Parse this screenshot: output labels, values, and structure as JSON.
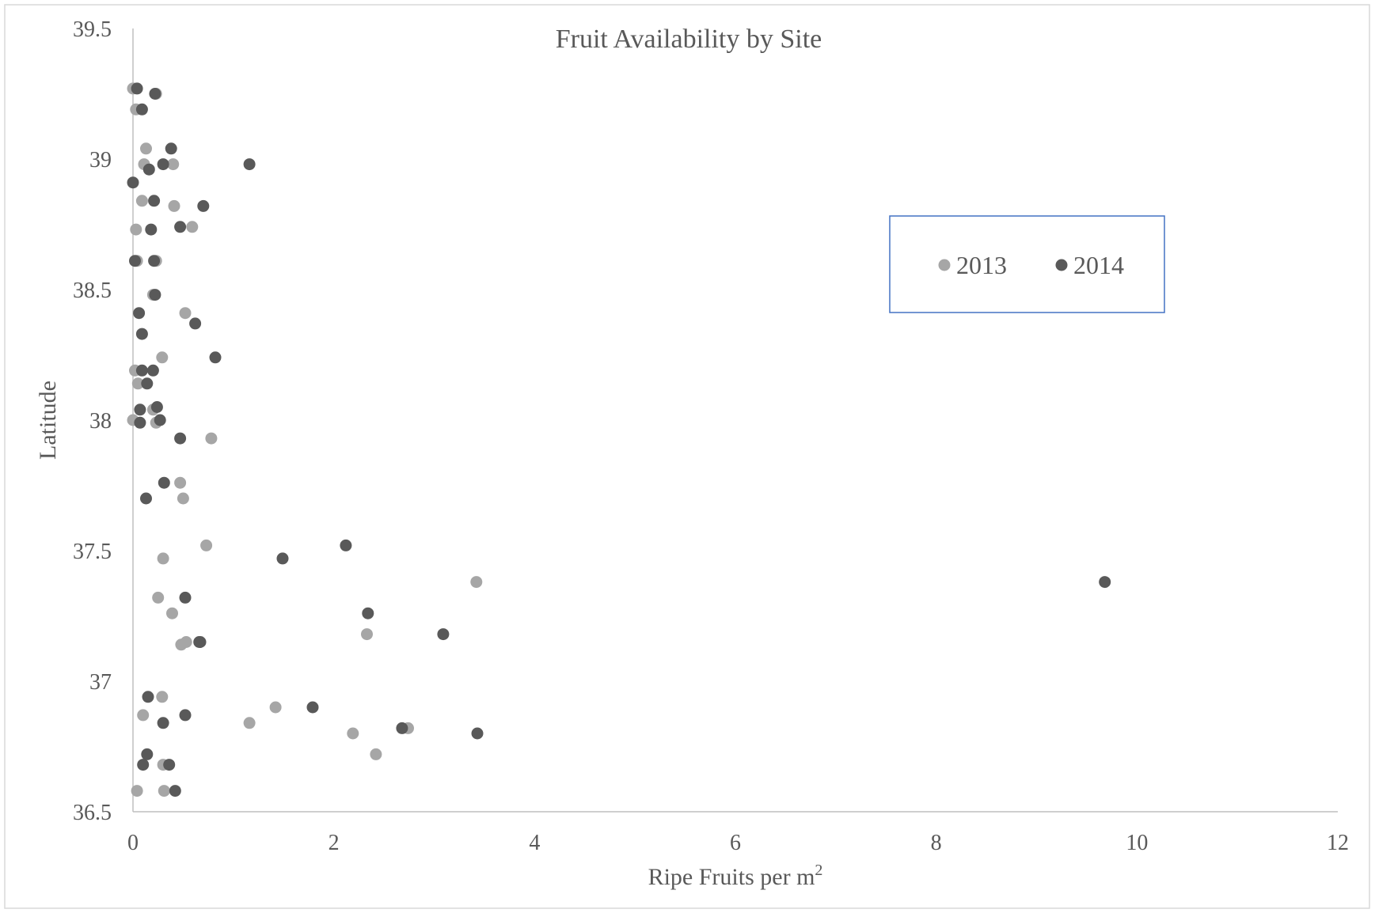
{
  "chart_data": {
    "type": "scatter",
    "title": "Fruit Availability by Site",
    "xlabel": "Ripe Fruits per m",
    "xlabel_sup": "2",
    "ylabel": "Latitude",
    "xlim": [
      0,
      12
    ],
    "ylim": [
      36.5,
      39.5
    ],
    "xticks": [
      0,
      2,
      4,
      6,
      8,
      10,
      12
    ],
    "yticks": [
      36.5,
      37,
      37.5,
      38,
      38.5,
      39,
      39.5
    ],
    "ytick_labels": [
      "36.5",
      "37",
      "37.5",
      "38",
      "38.5",
      "39",
      "39.5"
    ],
    "grid": false,
    "legend_position": "right",
    "colors": {
      "2013": "#a6a6a6",
      "2014": "#595959",
      "legend_border": "#4472c4"
    },
    "series": [
      {
        "name": "2013",
        "points": [
          [
            0.0,
            39.27
          ],
          [
            0.23,
            39.25
          ],
          [
            0.03,
            39.19
          ],
          [
            0.13,
            39.04
          ],
          [
            0.11,
            38.98
          ],
          [
            0.4,
            38.98
          ],
          [
            0.09,
            38.84
          ],
          [
            0.41,
            38.82
          ],
          [
            0.03,
            38.73
          ],
          [
            0.59,
            38.74
          ],
          [
            0.04,
            38.61
          ],
          [
            0.23,
            38.61
          ],
          [
            0.2,
            38.48
          ],
          [
            0.52,
            38.41
          ],
          [
            0.29,
            38.24
          ],
          [
            0.02,
            38.19
          ],
          [
            0.05,
            38.14
          ],
          [
            0.2,
            38.04
          ],
          [
            0.0,
            38.0
          ],
          [
            0.23,
            37.99
          ],
          [
            0.78,
            37.93
          ],
          [
            0.47,
            37.76
          ],
          [
            0.5,
            37.7
          ],
          [
            0.73,
            37.52
          ],
          [
            0.3,
            37.47
          ],
          [
            3.42,
            37.38
          ],
          [
            0.25,
            37.32
          ],
          [
            0.39,
            37.26
          ],
          [
            2.33,
            37.18
          ],
          [
            0.53,
            37.15
          ],
          [
            0.48,
            37.14
          ],
          [
            0.29,
            36.94
          ],
          [
            0.1,
            36.87
          ],
          [
            1.42,
            36.9
          ],
          [
            1.16,
            36.84
          ],
          [
            2.74,
            36.82
          ],
          [
            2.19,
            36.8
          ],
          [
            2.42,
            36.72
          ],
          [
            0.3,
            36.68
          ],
          [
            0.04,
            36.58
          ],
          [
            0.31,
            36.58
          ]
        ]
      },
      {
        "name": "2014",
        "points": [
          [
            0.04,
            39.27
          ],
          [
            0.22,
            39.25
          ],
          [
            0.09,
            39.19
          ],
          [
            0.38,
            39.04
          ],
          [
            0.3,
            38.98
          ],
          [
            0.16,
            38.96
          ],
          [
            1.16,
            38.98
          ],
          [
            0.0,
            38.91
          ],
          [
            0.21,
            38.84
          ],
          [
            0.7,
            38.82
          ],
          [
            0.18,
            38.73
          ],
          [
            0.47,
            38.74
          ],
          [
            0.02,
            38.61
          ],
          [
            0.21,
            38.61
          ],
          [
            0.22,
            38.48
          ],
          [
            0.06,
            38.41
          ],
          [
            0.62,
            38.37
          ],
          [
            0.09,
            38.33
          ],
          [
            0.82,
            38.24
          ],
          [
            0.09,
            38.19
          ],
          [
            0.2,
            38.19
          ],
          [
            0.14,
            38.14
          ],
          [
            0.07,
            38.04
          ],
          [
            0.24,
            38.05
          ],
          [
            0.07,
            37.99
          ],
          [
            0.27,
            38.0
          ],
          [
            0.47,
            37.93
          ],
          [
            0.31,
            37.76
          ],
          [
            0.13,
            37.7
          ],
          [
            2.12,
            37.52
          ],
          [
            1.49,
            37.47
          ],
          [
            9.68,
            37.38
          ],
          [
            0.52,
            37.32
          ],
          [
            2.34,
            37.26
          ],
          [
            3.09,
            37.18
          ],
          [
            0.66,
            37.15
          ],
          [
            0.67,
            37.15
          ],
          [
            0.15,
            36.94
          ],
          [
            0.3,
            36.84
          ],
          [
            0.52,
            36.87
          ],
          [
            1.79,
            36.9
          ],
          [
            2.68,
            36.82
          ],
          [
            3.43,
            36.8
          ],
          [
            0.14,
            36.72
          ],
          [
            0.1,
            36.68
          ],
          [
            0.36,
            36.68
          ],
          [
            0.42,
            36.58
          ]
        ]
      }
    ]
  }
}
